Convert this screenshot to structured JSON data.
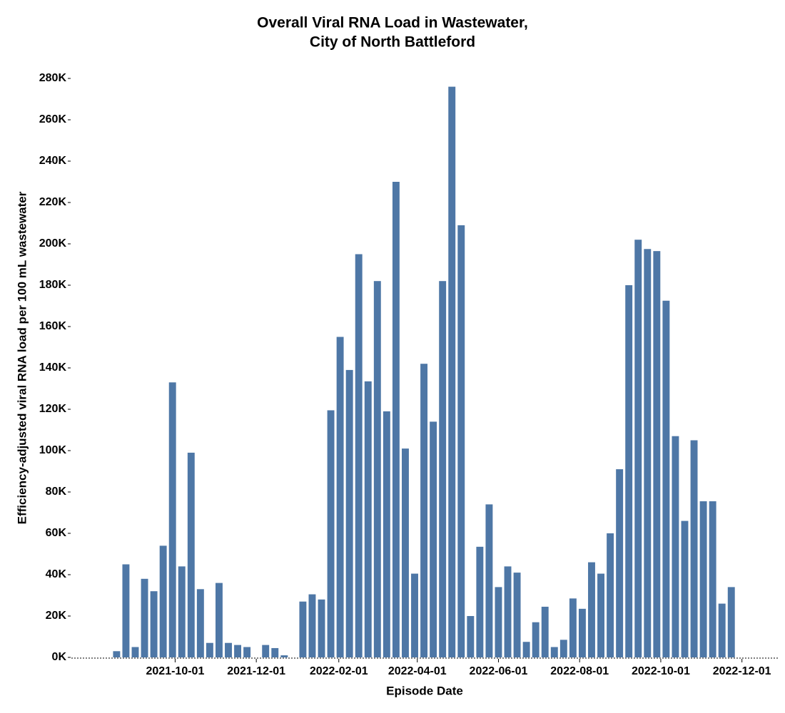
{
  "chart_data": {
    "type": "bar",
    "title": [
      "Overall Viral RNA Load in Wastewater,",
      "City of North Battleford"
    ],
    "x_label": "Episode Date",
    "y_label": "Efficiency-adjusted viral RNA load per 100 mL wastewater",
    "color": "#4e77a6",
    "x": [
      "2021-08-18",
      "2021-08-25",
      "2021-09-01",
      "2021-09-08",
      "2021-09-15",
      "2021-09-22",
      "2021-09-29",
      "2021-10-06",
      "2021-10-13",
      "2021-10-20",
      "2021-10-27",
      "2021-11-03",
      "2021-11-10",
      "2021-11-17",
      "2021-11-24",
      "2021-12-08",
      "2021-12-15",
      "2021-12-22",
      "2022-01-05",
      "2022-01-12",
      "2022-01-19",
      "2022-01-26",
      "2022-02-02",
      "2022-02-09",
      "2022-02-16",
      "2022-02-23",
      "2022-03-02",
      "2022-03-09",
      "2022-03-16",
      "2022-03-23",
      "2022-03-30",
      "2022-04-06",
      "2022-04-13",
      "2022-04-20",
      "2022-04-27",
      "2022-05-04",
      "2022-05-11",
      "2022-05-18",
      "2022-05-25",
      "2022-06-01",
      "2022-06-08",
      "2022-06-15",
      "2022-06-22",
      "2022-06-29",
      "2022-07-06",
      "2022-07-13",
      "2022-07-20",
      "2022-07-27",
      "2022-08-03",
      "2022-08-10",
      "2022-08-17",
      "2022-08-24",
      "2022-08-31",
      "2022-09-07",
      "2022-09-14",
      "2022-09-21",
      "2022-09-28",
      "2022-10-05",
      "2022-10-12",
      "2022-10-19",
      "2022-10-26",
      "2022-11-02",
      "2022-11-09",
      "2022-11-16",
      "2022-11-23"
    ],
    "values": [
      3000,
      45000,
      5000,
      38000,
      32000,
      54000,
      133000,
      44000,
      99000,
      33000,
      7000,
      36000,
      7000,
      6000,
      5000,
      6000,
      4500,
      1000,
      27000,
      30500,
      28000,
      119500,
      155000,
      139000,
      195000,
      133500,
      182000,
      119000,
      230000,
      101000,
      40500,
      142000,
      114000,
      182000,
      276000,
      209000,
      20000,
      53500,
      74000,
      34000,
      44000,
      41000,
      7500,
      17000,
      24500,
      5000,
      8500,
      28500,
      23500,
      46000,
      40500,
      60000,
      91000,
      180000,
      202000,
      197500,
      196500,
      172500,
      107000,
      66000,
      105000,
      75500,
      75500,
      26000,
      34000
    ],
    "xlim": [
      "2021-07-15",
      "2022-12-28"
    ],
    "xticks": [
      "2021-10-01",
      "2021-12-01",
      "2022-02-01",
      "2022-04-01",
      "2022-06-01",
      "2022-08-01",
      "2022-10-01",
      "2022-12-01"
    ],
    "ylim": [
      0,
      280000
    ],
    "yticks": [
      {
        "value": 0,
        "label": "0K"
      },
      {
        "value": 20000,
        "label": "20K"
      },
      {
        "value": 40000,
        "label": "40K"
      },
      {
        "value": 60000,
        "label": "60K"
      },
      {
        "value": 80000,
        "label": "80K"
      },
      {
        "value": 100000,
        "label": "100K"
      },
      {
        "value": 120000,
        "label": "120K"
      },
      {
        "value": 140000,
        "label": "140K"
      },
      {
        "value": 160000,
        "label": "160K"
      },
      {
        "value": 180000,
        "label": "180K"
      },
      {
        "value": 200000,
        "label": "200K"
      },
      {
        "value": 220000,
        "label": "220K"
      },
      {
        "value": 240000,
        "label": "240K"
      },
      {
        "value": 260000,
        "label": "260K"
      },
      {
        "value": 280000,
        "label": "280K"
      }
    ],
    "grid": false
  }
}
